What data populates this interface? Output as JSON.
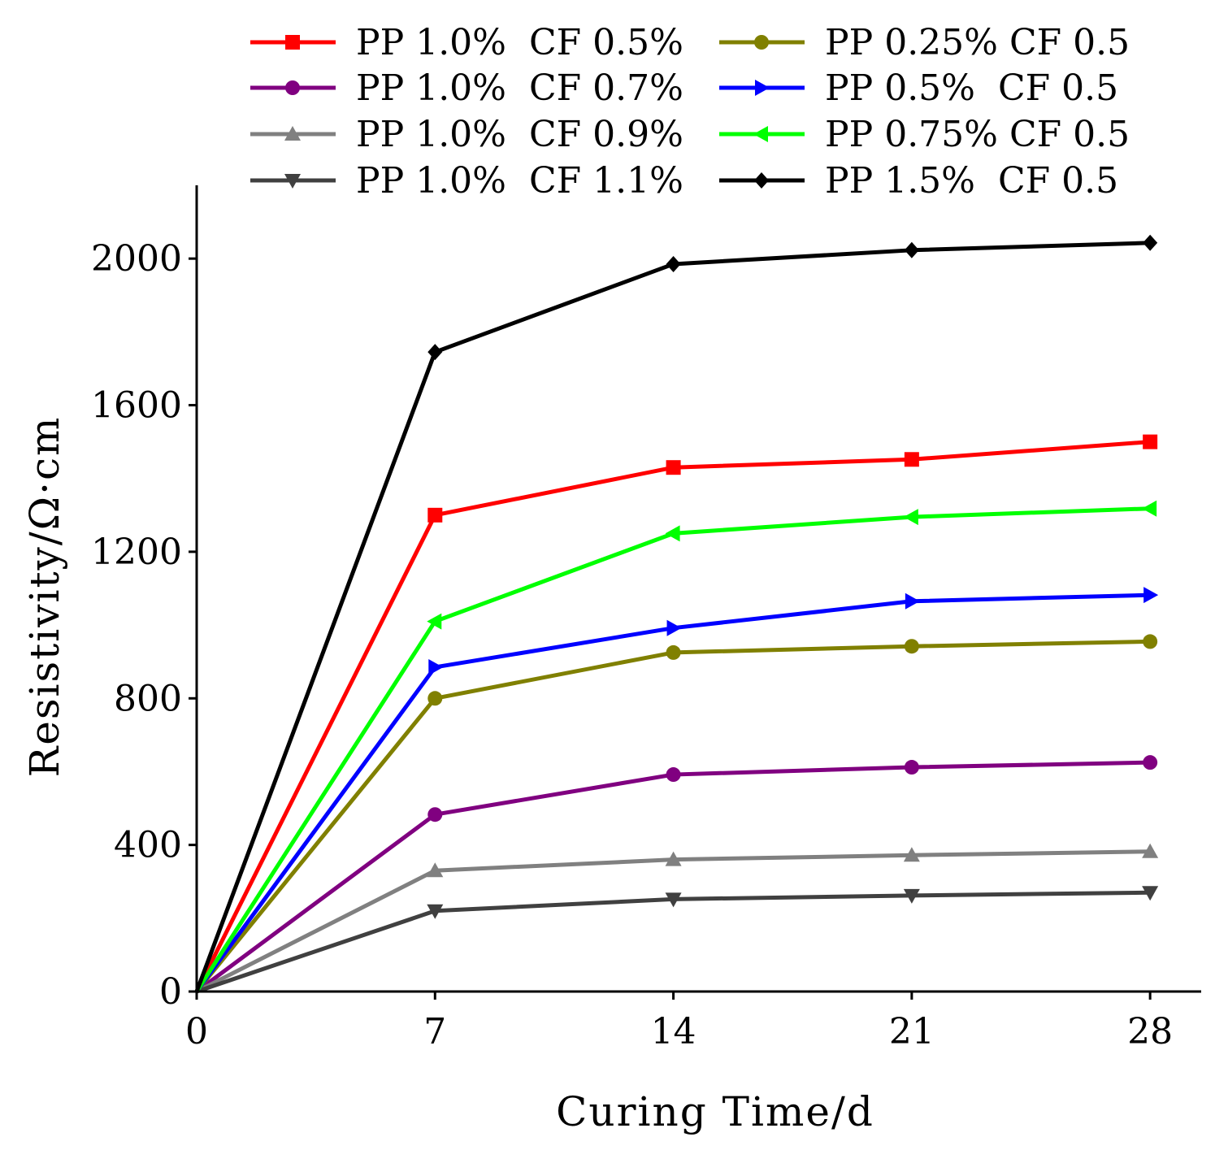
{
  "chart_data": {
    "type": "line",
    "title": "",
    "xlabel": "Curing Time/d",
    "ylabel": "Resistivity/Ω·cm",
    "x": [
      0,
      7,
      14,
      21,
      28
    ],
    "x_ticks": [
      0,
      7,
      14,
      21,
      28
    ],
    "y_ticks": [
      0,
      400,
      800,
      1200,
      1600,
      2000
    ],
    "xlim": [
      0,
      29.5
    ],
    "ylim": [
      0,
      2200
    ],
    "grid": false,
    "legend_position": "top",
    "series": [
      {
        "name": "PP 1.0%  CF 0.5%",
        "color": "#ff0000",
        "marker": "square",
        "values": [
          0,
          1300,
          1430,
          1452,
          1500
        ]
      },
      {
        "name": "PP 1.0%  CF 0.7%",
        "color": "#800080",
        "marker": "circle",
        "values": [
          0,
          483,
          592,
          612,
          625
        ]
      },
      {
        "name": "PP 1.0%  CF 0.9%",
        "color": "#808080",
        "marker": "triangle-up",
        "values": [
          0,
          330,
          360,
          372,
          382
        ]
      },
      {
        "name": "PP 1.0%  CF 1.1%",
        "color": "#404040",
        "marker": "triangle-down",
        "values": [
          0,
          220,
          252,
          262,
          270
        ]
      },
      {
        "name": "PP 0.25% CF 0.5",
        "color": "#808000",
        "marker": "circle",
        "values": [
          0,
          800,
          925,
          942,
          955
        ]
      },
      {
        "name": "PP 0.5%  CF 0.5",
        "color": "#0000ff",
        "marker": "triangle-right",
        "values": [
          0,
          885,
          992,
          1065,
          1082
        ]
      },
      {
        "name": "PP 0.75% CF 0.5",
        "color": "#00ff00",
        "marker": "triangle-left",
        "values": [
          0,
          1010,
          1250,
          1295,
          1318
        ]
      },
      {
        "name": "PP 1.5%  CF 0.5",
        "color": "#000000",
        "marker": "diamond",
        "values": [
          0,
          1745,
          1985,
          2023,
          2043
        ]
      }
    ]
  }
}
